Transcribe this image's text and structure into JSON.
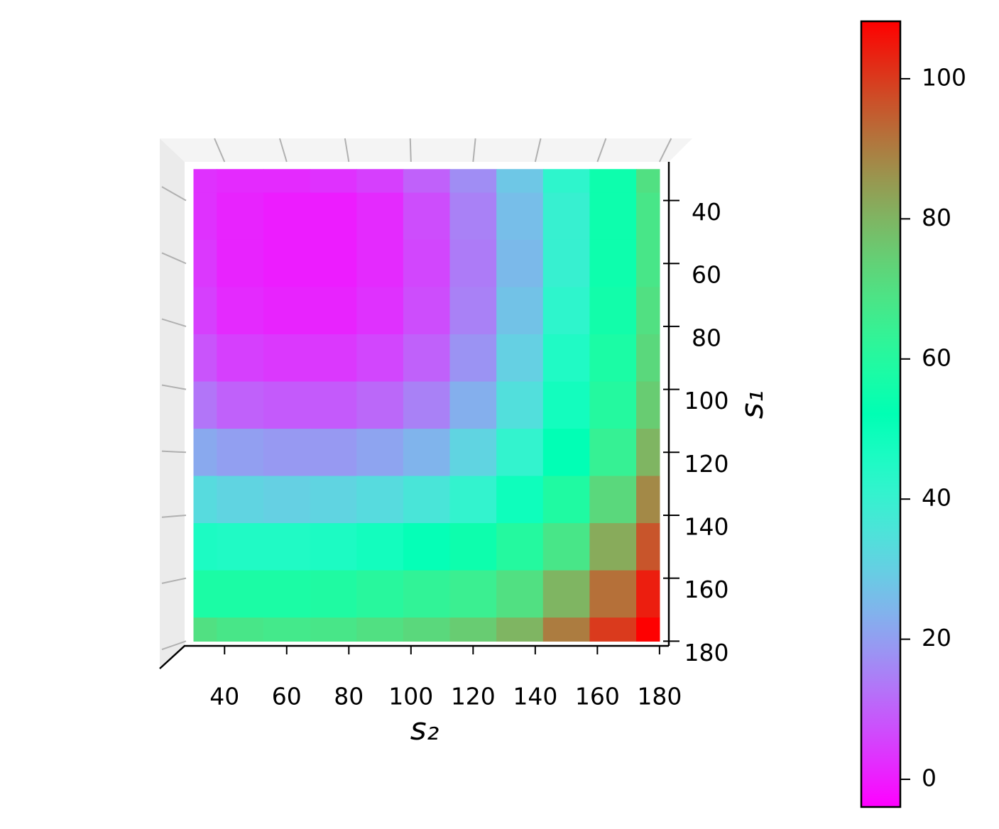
{
  "chart_data": {
    "type": "surface",
    "x_label": "s₂",
    "y_label": "s₁",
    "x": [
      30,
      45,
      60,
      75,
      90,
      105,
      120,
      135,
      150,
      165,
      180
    ],
    "y": [
      30,
      45,
      60,
      75,
      90,
      105,
      120,
      135,
      150,
      165,
      180
    ],
    "z": [
      [
        3,
        2,
        2,
        3,
        5,
        10,
        17,
        28,
        42,
        55,
        70
      ],
      [
        3,
        1,
        0,
        0,
        2,
        7,
        15,
        26,
        40,
        55,
        68
      ],
      [
        4,
        1,
        0,
        0,
        2,
        6,
        14,
        25,
        40,
        55,
        68
      ],
      [
        5,
        2,
        1,
        1,
        3,
        7,
        15,
        27,
        42,
        56,
        70
      ],
      [
        8,
        5,
        4,
        4,
        6,
        10,
        18,
        30,
        45,
        58,
        72
      ],
      [
        13,
        10,
        9,
        9,
        11,
        15,
        23,
        34,
        48,
        60,
        75
      ],
      [
        22,
        20,
        19,
        19,
        21,
        24,
        31,
        41,
        52,
        64,
        80
      ],
      [
        33,
        31,
        30,
        31,
        33,
        36,
        41,
        49,
        59,
        72,
        88
      ],
      [
        46,
        45,
        45,
        46,
        48,
        51,
        55,
        60,
        68,
        82,
        96
      ],
      [
        58,
        58,
        58,
        59,
        61,
        63,
        65,
        70,
        80,
        92,
        104
      ],
      [
        70,
        68,
        67,
        68,
        70,
        72,
        75,
        80,
        90,
        100,
        108
      ]
    ],
    "xlim": [
      27.6,
      183
    ],
    "ylim": [
      27.7,
      181.5
    ],
    "xticks": [
      40,
      60,
      80,
      100,
      120,
      140,
      160,
      180
    ],
    "yticks": [
      40,
      60,
      80,
      100,
      120,
      140,
      160,
      180
    ],
    "colormap": "rainbow",
    "clim": [
      -3.95,
      108.2
    ],
    "cticks": [
      0,
      20,
      40,
      60,
      80,
      100
    ]
  }
}
